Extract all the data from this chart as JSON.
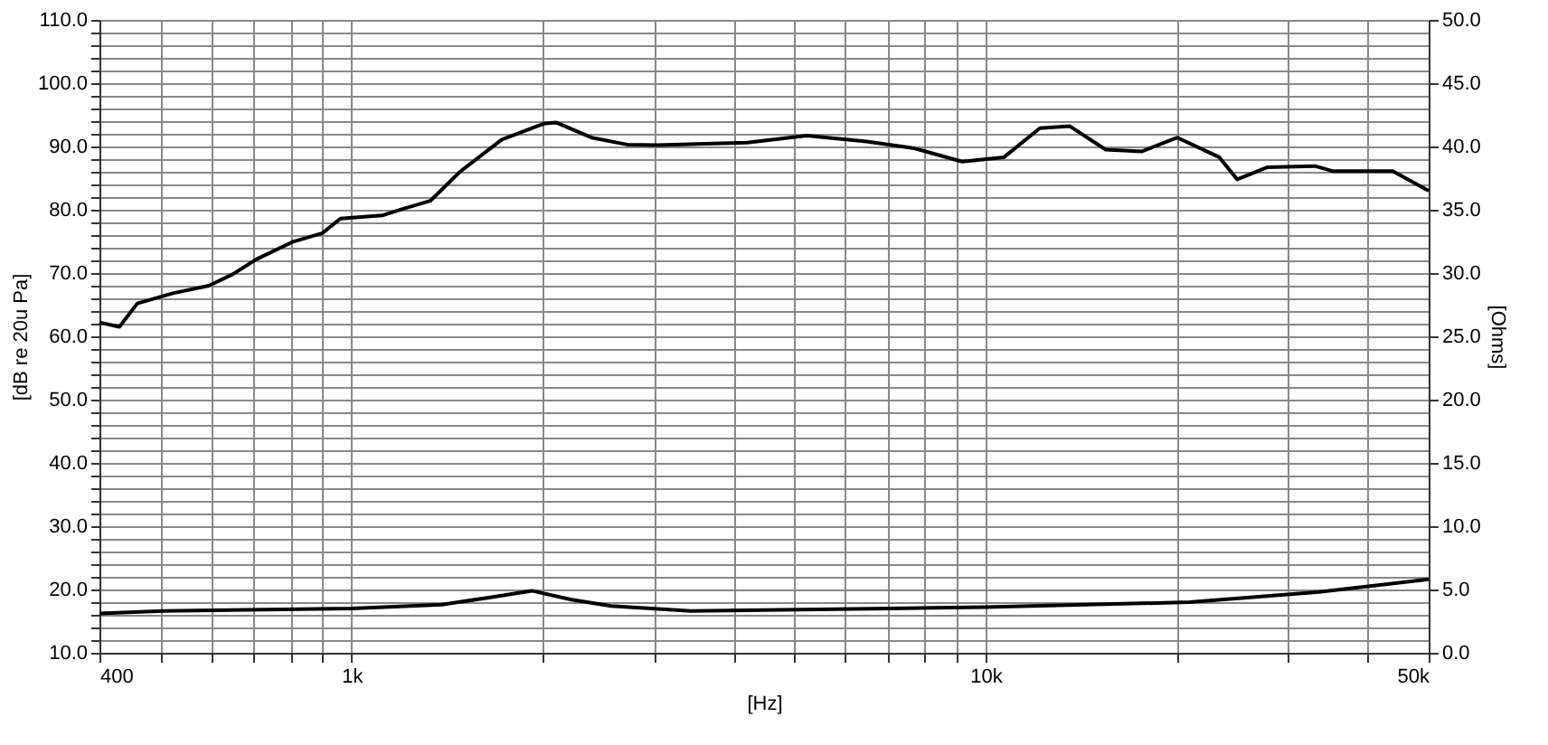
{
  "chart_data": {
    "type": "line",
    "xlabel": "[Hz]",
    "ylabel": "[dB re 20u Pa]",
    "y2label": "[Ohms]",
    "log": "x",
    "grid": true,
    "marker": "none",
    "line_style": "solid",
    "xlim": [
      400,
      50000
    ],
    "ylim": [
      10,
      110
    ],
    "y2lim": [
      0,
      50
    ],
    "xticks": [
      400,
      {
        "value": 500,
        "label": null
      },
      {
        "value": 600,
        "label": null
      },
      {
        "value": 700,
        "label": null
      },
      {
        "value": 800,
        "label": null
      },
      {
        "value": 900,
        "label": null
      },
      {
        "value": 1000,
        "label": "1k"
      },
      {
        "value": 2000,
        "label": null
      },
      {
        "value": 3000,
        "label": null
      },
      {
        "value": 4000,
        "label": null
      },
      {
        "value": 5000,
        "label": null
      },
      {
        "value": 6000,
        "label": null
      },
      {
        "value": 7000,
        "label": null
      },
      {
        "value": 8000,
        "label": null
      },
      {
        "value": 9000,
        "label": null
      },
      {
        "value": 10000,
        "label": "10k"
      },
      {
        "value": 20000,
        "label": null
      },
      {
        "value": 30000,
        "label": null
      },
      {
        "value": 40000,
        "label": null
      },
      {
        "value": 50000,
        "label": "50k"
      }
    ],
    "yticks": [
      {
        "value": 10,
        "label": "10.0"
      },
      {
        "value": 12,
        "label": null
      },
      {
        "value": 14,
        "label": null
      },
      {
        "value": 16,
        "label": null
      },
      {
        "value": 18,
        "label": null
      },
      {
        "value": 20,
        "label": "20.0"
      },
      {
        "value": 22,
        "label": null
      },
      {
        "value": 24,
        "label": null
      },
      {
        "value": 26,
        "label": null
      },
      {
        "value": 28,
        "label": null
      },
      {
        "value": 30,
        "label": "30.0"
      },
      {
        "value": 32,
        "label": null
      },
      {
        "value": 34,
        "label": null
      },
      {
        "value": 36,
        "label": null
      },
      {
        "value": 38,
        "label": null
      },
      {
        "value": 40,
        "label": "40.0"
      },
      {
        "value": 42,
        "label": null
      },
      {
        "value": 44,
        "label": null
      },
      {
        "value": 46,
        "label": null
      },
      {
        "value": 48,
        "label": null
      },
      {
        "value": 50,
        "label": "50.0"
      },
      {
        "value": 52,
        "label": null
      },
      {
        "value": 54,
        "label": null
      },
      {
        "value": 56,
        "label": null
      },
      {
        "value": 58,
        "label": null
      },
      {
        "value": 60,
        "label": "60.0"
      },
      {
        "value": 62,
        "label": null
      },
      {
        "value": 64,
        "label": null
      },
      {
        "value": 66,
        "label": null
      },
      {
        "value": 68,
        "label": null
      },
      {
        "value": 70,
        "label": "70.0"
      },
      {
        "value": 72,
        "label": null
      },
      {
        "value": 74,
        "label": null
      },
      {
        "value": 76,
        "label": null
      },
      {
        "value": 78,
        "label": null
      },
      {
        "value": 80,
        "label": "80.0"
      },
      {
        "value": 82,
        "label": null
      },
      {
        "value": 84,
        "label": null
      },
      {
        "value": 86,
        "label": null
      },
      {
        "value": 88,
        "label": null
      },
      {
        "value": 90,
        "label": "90.0"
      },
      {
        "value": 92,
        "label": null
      },
      {
        "value": 94,
        "label": null
      },
      {
        "value": 96,
        "label": null
      },
      {
        "value": 98,
        "label": null
      },
      {
        "value": 100,
        "label": "100.0"
      },
      {
        "value": 102,
        "label": null
      },
      {
        "value": 104,
        "label": null
      },
      {
        "value": 106,
        "label": null
      },
      {
        "value": 108,
        "label": null
      },
      {
        "value": 110,
        "label": "110.0"
      }
    ],
    "y2ticks": [
      {
        "value": 0,
        "label": "0.0"
      },
      {
        "value": 5,
        "label": "5.0"
      },
      {
        "value": 10,
        "label": "10.0"
      },
      {
        "value": 15,
        "label": "15.0"
      },
      {
        "value": 20,
        "label": "20.0"
      },
      {
        "value": 25,
        "label": "25.0"
      },
      {
        "value": 30,
        "label": "30.0"
      },
      {
        "value": 35,
        "label": "35.0"
      },
      {
        "value": 40,
        "label": "40.0"
      },
      {
        "value": 45,
        "label": "45.0"
      },
      {
        "value": 50,
        "label": "50.0"
      }
    ],
    "series": [
      {
        "color": "#000000",
        "x": [
          400,
          430,
          459,
          522,
          595,
          649,
          708,
          806,
          899,
          960,
          1117,
          1200,
          1330,
          1482,
          1725,
          2008,
          2100,
          2390,
          2720,
          3036,
          4204,
          5222,
          6490,
          7720,
          9185,
          10690,
          12180,
          13580,
          15470,
          17620,
          20070,
          23370,
          24950,
          27800,
          33090,
          35320,
          43880,
          50000
        ],
        "values": [
          62.2,
          61.5,
          65.2,
          66.8,
          68.0,
          69.8,
          72.2,
          74.9,
          76.3,
          78.6,
          79.1,
          80.1,
          81.4,
          86.0,
          91.1,
          93.6,
          93.8,
          91.4,
          90.3,
          90.2,
          90.6,
          91.7,
          90.8,
          89.7,
          87.6,
          88.3,
          92.9,
          93.2,
          89.5,
          89.2,
          91.4,
          88.3,
          84.8,
          86.7,
          86.9,
          86.1,
          86.1,
          83.0
        ]
      },
      {
        "color": "#000000",
        "axis": "y2",
        "x": [
          400,
          504,
          1000,
          1388,
          1663,
          1923,
          2222,
          2565,
          3433,
          7080,
          10000,
          20970,
          33570,
          50000
        ],
        "values": [
          3.1,
          3.3,
          3.5,
          3.8,
          4.4,
          4.9,
          4.2,
          3.7,
          3.3,
          3.5,
          3.6,
          4.0,
          4.8,
          5.8
        ]
      }
    ]
  }
}
